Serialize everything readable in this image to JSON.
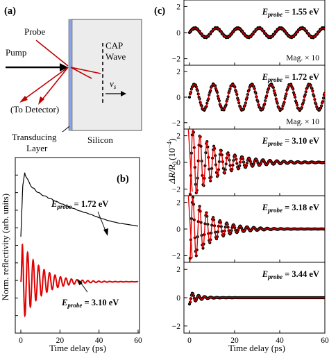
{
  "panels": {
    "a": "(a)",
    "b": "(b)",
    "c": "(c)"
  },
  "diagram": {
    "probe": "Probe",
    "pump": "Pump",
    "to_detector": "(To Detector)",
    "cap_wave": [
      "CAP",
      "Wave"
    ],
    "velocity": "v",
    "velocity_sub": "s",
    "transducing_layer": [
      "Transducing",
      "Layer"
    ],
    "silicon": "Silicon"
  },
  "chart_data": [
    {
      "panel": "b",
      "type": "line",
      "xlabel": "Time delay (ps)",
      "ylabel": "Norm. reflectivity (arb. units)",
      "xlim": [
        0,
        60
      ],
      "xticks": [
        0,
        20,
        40,
        60
      ],
      "series": [
        {
          "name": "E_probe = 1.72 eV",
          "color": "#000000",
          "x": [
            0,
            1,
            2,
            3,
            4,
            6,
            8,
            10,
            15,
            20,
            25,
            30,
            35,
            40,
            45,
            50,
            55,
            60
          ],
          "y": [
            0.08,
            0.75,
            0.92,
            0.85,
            0.8,
            0.72,
            0.68,
            0.64,
            0.58,
            0.52,
            0.47,
            0.42,
            0.38,
            0.33,
            0.29,
            0.26,
            0.24,
            0.22
          ]
        },
        {
          "name": "E_probe = 3.10 eV",
          "color": "#e00000",
          "model": "damped_sine",
          "offset": 0.0,
          "amplitude": 1.0,
          "period_ps": 2.8,
          "decay_ps": 9.5,
          "x_range": [
            0,
            60
          ]
        }
      ],
      "annotations": [
        {
          "prefix": "E",
          "sub": "probe",
          "text": " = 1.72 eV"
        },
        {
          "prefix": "E",
          "sub": "probe",
          "text": " = 3.10 eV"
        }
      ]
    },
    {
      "panel": "c",
      "type": "scatter",
      "xlabel": "Time delay (ps)",
      "ylabel": "ΔR/R",
      "ylabel_sub": "0",
      "ylabel_unit": "(10",
      "ylabel_exp": "−4",
      "ylabel_close": ")",
      "xlim": [
        0,
        60
      ],
      "xticks": [
        0,
        20,
        40,
        60
      ],
      "subplots": [
        {
          "ylim": [
            -2.5,
            2.5
          ],
          "yticks": [
            -2,
            0,
            2
          ],
          "eprobe": " = 1.55 eV",
          "note": "Mag. × 10",
          "period_ps": 9.5,
          "amplitude": 0.35,
          "decay_ps": 1000,
          "fit_color": "#e00000",
          "data_color": "#000000"
        },
        {
          "ylim": [
            -2.5,
            2.5
          ],
          "yticks": [
            -2,
            0,
            2
          ],
          "eprobe": " = 1.72 eV",
          "note": "Mag. × 10",
          "period_ps": 8.5,
          "amplitude": 1.0,
          "decay_ps": 1000,
          "fit_color": "#e00000",
          "data_color": "#000000"
        },
        {
          "ylim": [
            -2.5,
            2.5
          ],
          "yticks": [
            -2,
            0,
            2
          ],
          "eprobe": " = 3.10 eV",
          "note": "",
          "period_ps": 3.1,
          "amplitude": 3.0,
          "decay_ps": 12,
          "fit_color": "#e00000",
          "data_color": "#000000"
        },
        {
          "ylim": [
            -2.5,
            2.5
          ],
          "yticks": [
            -2,
            0,
            2
          ],
          "eprobe": " = 3.18 eV",
          "note": "",
          "period_ps": 3.0,
          "amplitude": 2.8,
          "decay_ps": 9,
          "fit_color": "#e00000",
          "data_color": "#000000"
        },
        {
          "ylim": [
            -2.5,
            2.5
          ],
          "yticks": [
            -2,
            0,
            2
          ],
          "eprobe": " = 3.44 eV",
          "note": "",
          "period_ps": 2.7,
          "amplitude": 0.45,
          "decay_ps": 4,
          "fit_color": "#e00000",
          "data_color": "#000000"
        }
      ]
    }
  ]
}
